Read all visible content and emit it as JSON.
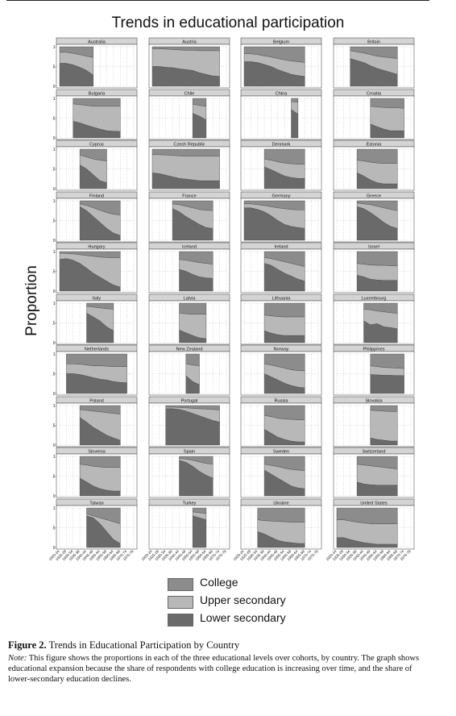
{
  "chart_data": {
    "type": "area",
    "title": "Trends in educational participation",
    "ylabel": "Proportion",
    "ylim": [
      0,
      1
    ],
    "yticks": [
      "0",
      ".5",
      "1"
    ],
    "x_tick_labels": [
      "1920-24",
      "1925-29",
      "1930-34",
      "1935-39",
      "1940-44",
      "1945-49",
      "1950-54",
      "1955-59",
      "1960-64",
      "1965-69",
      "1970-74",
      "1975-79"
    ],
    "layers": [
      "Lower secondary",
      "Upper secondary",
      "College"
    ],
    "legend": [
      {
        "label": "College",
        "color": "#8c8c8c"
      },
      {
        "label": "Upper secondary",
        "color": "#b8b8b8"
      },
      {
        "label": "Lower secondary",
        "color": "#6a6a6a"
      }
    ],
    "colors": {
      "college": "#8c8c8c",
      "upper": "#b8b8b8",
      "lower": "#6a6a6a"
    },
    "panels": [
      {
        "country": "Australia",
        "start": 0,
        "end": 6,
        "lower": [
          0.58,
          0.58,
          0.54,
          0.48,
          0.4,
          0.28
        ],
        "college": [
          0.14,
          0.14,
          0.17,
          0.2,
          0.24,
          0.27
        ]
      },
      {
        "country": "Austria",
        "start": 0,
        "end": 11,
        "lower": [
          0.5,
          0.5,
          0.48,
          0.47,
          0.44,
          0.42,
          0.4,
          0.34,
          0.3,
          0.26,
          0.25
        ],
        "college": [
          0.05,
          0.05,
          0.06,
          0.07,
          0.08,
          0.09,
          0.09,
          0.1,
          0.1,
          0.1,
          0.1
        ]
      },
      {
        "country": "Belgium",
        "start": 0,
        "end": 10,
        "lower": [
          0.62,
          0.62,
          0.6,
          0.55,
          0.5,
          0.42,
          0.36,
          0.3,
          0.27,
          0.25
        ],
        "college": [
          0.18,
          0.18,
          0.2,
          0.23,
          0.26,
          0.3,
          0.33,
          0.36,
          0.38,
          0.4
        ]
      },
      {
        "country": "Britain",
        "start": 2,
        "end": 10,
        "lower": [
          0.7,
          0.65,
          0.6,
          0.52,
          0.45,
          0.4,
          0.35,
          0.3
        ],
        "college": [
          0.1,
          0.13,
          0.16,
          0.2,
          0.24,
          0.26,
          0.28,
          0.3
        ]
      },
      {
        "country": "Bulgaria",
        "start": 2,
        "end": 10,
        "lower": [
          0.42,
          0.38,
          0.32,
          0.27,
          0.22,
          0.18,
          0.17,
          0.16
        ],
        "college": [
          0.14,
          0.16,
          0.18,
          0.2,
          0.2,
          0.2,
          0.2,
          0.2
        ]
      },
      {
        "country": "Chile",
        "start": 6,
        "end": 9,
        "lower": [
          0.62,
          0.55,
          0.45
        ],
        "college": [
          0.15,
          0.18,
          0.2
        ]
      },
      {
        "country": "China",
        "start": 7,
        "end": 9,
        "lower": [
          0.72,
          0.6
        ],
        "college": [
          0.08,
          0.1
        ]
      },
      {
        "country": "Croatia",
        "start": 5,
        "end": 11,
        "lower": [
          0.35,
          0.28,
          0.22,
          0.18,
          0.18,
          0.18
        ],
        "college": [
          0.2,
          0.22,
          0.23,
          0.24,
          0.24,
          0.25
        ]
      },
      {
        "country": "Cyprus",
        "start": 3,
        "end": 8,
        "lower": [
          0.6,
          0.5,
          0.35,
          0.2,
          0.15
        ],
        "college": [
          0.15,
          0.2,
          0.25,
          0.28,
          0.3
        ]
      },
      {
        "country": "Czech Republic",
        "start": 0,
        "end": 11,
        "lower": [
          0.4,
          0.38,
          0.34,
          0.3,
          0.26,
          0.24,
          0.22,
          0.2,
          0.2,
          0.2,
          0.2
        ],
        "college": [
          0.14,
          0.14,
          0.15,
          0.16,
          0.17,
          0.18,
          0.18,
          0.18,
          0.18,
          0.18,
          0.18
        ]
      },
      {
        "country": "Denmark",
        "start": 3,
        "end": 10,
        "lower": [
          0.55,
          0.48,
          0.4,
          0.32,
          0.28,
          0.26,
          0.26
        ],
        "college": [
          0.25,
          0.28,
          0.32,
          0.35,
          0.37,
          0.38,
          0.38
        ]
      },
      {
        "country": "Estonia",
        "start": 3,
        "end": 10,
        "lower": [
          0.4,
          0.32,
          0.22,
          0.15,
          0.12,
          0.12,
          0.12
        ],
        "college": [
          0.28,
          0.3,
          0.33,
          0.35,
          0.36,
          0.36,
          0.36
        ]
      },
      {
        "country": "Finland",
        "start": 3,
        "end": 10,
        "lower": [
          0.85,
          0.75,
          0.6,
          0.45,
          0.3,
          0.18,
          0.12
        ],
        "college": [
          0.08,
          0.12,
          0.18,
          0.24,
          0.3,
          0.34,
          0.36
        ]
      },
      {
        "country": "France",
        "start": 3,
        "end": 10,
        "lower": [
          0.8,
          0.72,
          0.6,
          0.5,
          0.4,
          0.32,
          0.3
        ],
        "college": [
          0.08,
          0.1,
          0.14,
          0.18,
          0.22,
          0.24,
          0.25
        ]
      },
      {
        "country": "Germany",
        "start": 0,
        "end": 10,
        "lower": [
          0.82,
          0.82,
          0.78,
          0.72,
          0.62,
          0.5,
          0.4,
          0.35,
          0.32,
          0.3
        ],
        "college": [
          0.08,
          0.08,
          0.1,
          0.12,
          0.15,
          0.18,
          0.2,
          0.22,
          0.23,
          0.23
        ]
      },
      {
        "country": "Greece",
        "start": 3,
        "end": 10,
        "lower": [
          0.85,
          0.8,
          0.7,
          0.58,
          0.45,
          0.35,
          0.3
        ],
        "college": [
          0.06,
          0.08,
          0.1,
          0.14,
          0.18,
          0.22,
          0.25
        ]
      },
      {
        "country": "Hungary",
        "start": 0,
        "end": 10,
        "lower": [
          0.8,
          0.82,
          0.78,
          0.7,
          0.58,
          0.45,
          0.35,
          0.25,
          0.15,
          0.1
        ],
        "college": [
          0.04,
          0.05,
          0.06,
          0.08,
          0.1,
          0.12,
          0.14,
          0.15,
          0.16,
          0.16
        ]
      },
      {
        "country": "Iceland",
        "start": 4,
        "end": 10,
        "lower": [
          0.55,
          0.5,
          0.42,
          0.36,
          0.33,
          0.32
        ],
        "college": [
          0.2,
          0.22,
          0.25,
          0.28,
          0.3,
          0.32
        ]
      },
      {
        "country": "Ireland",
        "start": 3,
        "end": 10,
        "lower": [
          0.7,
          0.65,
          0.55,
          0.45,
          0.38,
          0.3,
          0.25
        ],
        "college": [
          0.15,
          0.18,
          0.22,
          0.26,
          0.3,
          0.34,
          0.38
        ]
      },
      {
        "country": "Israel",
        "start": 3,
        "end": 10,
        "lower": [
          0.4,
          0.36,
          0.3,
          0.28,
          0.27,
          0.27,
          0.27
        ],
        "college": [
          0.3,
          0.32,
          0.34,
          0.35,
          0.35,
          0.36,
          0.36
        ]
      },
      {
        "country": "Italy",
        "start": 4,
        "end": 9,
        "lower": [
          0.75,
          0.65,
          0.55,
          0.4,
          0.3
        ],
        "college": [
          0.08,
          0.1,
          0.12,
          0.14,
          0.15
        ]
      },
      {
        "country": "Latvia",
        "start": 4,
        "end": 9,
        "lower": [
          0.32,
          0.25,
          0.18,
          0.12,
          0.1
        ],
        "college": [
          0.25,
          0.27,
          0.28,
          0.28,
          0.28
        ]
      },
      {
        "country": "Lithuania",
        "start": 3,
        "end": 10,
        "lower": [
          0.3,
          0.24,
          0.2,
          0.18,
          0.18,
          0.18,
          0.18
        ],
        "college": [
          0.3,
          0.32,
          0.34,
          0.35,
          0.35,
          0.35,
          0.35
        ]
      },
      {
        "country": "Luxembourg",
        "start": 4,
        "end": 10,
        "lower": [
          0.55,
          0.45,
          0.48,
          0.4,
          0.38,
          0.35
        ],
        "college": [
          0.15,
          0.17,
          0.2,
          0.22,
          0.24,
          0.26
        ]
      },
      {
        "country": "Netherlands",
        "start": 1,
        "end": 11,
        "lower": [
          0.5,
          0.5,
          0.48,
          0.44,
          0.4,
          0.36,
          0.34,
          0.3,
          0.28,
          0.27
        ],
        "college": [
          0.25,
          0.25,
          0.26,
          0.28,
          0.3,
          0.3,
          0.31,
          0.32,
          0.32,
          0.32
        ]
      },
      {
        "country": "New Zealand",
        "start": 5,
        "end": 8,
        "lower": [
          0.45,
          0.3,
          0.22
        ],
        "college": [
          0.25,
          0.28,
          0.3
        ]
      },
      {
        "country": "Norway",
        "start": 3,
        "end": 10,
        "lower": [
          0.5,
          0.42,
          0.34,
          0.26,
          0.2,
          0.16,
          0.14
        ],
        "college": [
          0.25,
          0.28,
          0.32,
          0.36,
          0.4,
          0.42,
          0.43
        ]
      },
      {
        "country": "Philippines",
        "start": 5,
        "end": 11,
        "lower": [
          0.48,
          0.47,
          0.46,
          0.46,
          0.45,
          0.45
        ],
        "college": [
          0.3,
          0.32,
          0.34,
          0.35,
          0.36,
          0.37
        ]
      },
      {
        "country": "Poland",
        "start": 3,
        "end": 10,
        "lower": [
          0.7,
          0.58,
          0.45,
          0.35,
          0.25,
          0.18,
          0.12
        ],
        "college": [
          0.1,
          0.12,
          0.14,
          0.16,
          0.18,
          0.2,
          0.22
        ]
      },
      {
        "country": "Portugal",
        "start": 2,
        "end": 11,
        "lower": [
          0.92,
          0.92,
          0.9,
          0.86,
          0.8,
          0.74,
          0.68,
          0.62,
          0.58
        ],
        "college": [
          0.04,
          0.04,
          0.05,
          0.06,
          0.07,
          0.08,
          0.09,
          0.1,
          0.11
        ]
      },
      {
        "country": "Russia",
        "start": 3,
        "end": 10,
        "lower": [
          0.4,
          0.3,
          0.2,
          0.14,
          0.1,
          0.08,
          0.08
        ],
        "college": [
          0.25,
          0.28,
          0.32,
          0.34,
          0.35,
          0.36,
          0.36
        ]
      },
      {
        "country": "Slovakia",
        "start": 5,
        "end": 10,
        "lower": [
          0.18,
          0.14,
          0.12,
          0.1,
          0.1
        ],
        "college": [
          0.12,
          0.13,
          0.14,
          0.15,
          0.15
        ]
      },
      {
        "country": "Slovenia",
        "start": 3,
        "end": 10,
        "lower": [
          0.45,
          0.35,
          0.25,
          0.18,
          0.14,
          0.12,
          0.12
        ],
        "college": [
          0.2,
          0.22,
          0.25,
          0.27,
          0.28,
          0.28,
          0.28
        ]
      },
      {
        "country": "Spain",
        "start": 4,
        "end": 10,
        "lower": [
          0.9,
          0.85,
          0.75,
          0.62,
          0.52,
          0.45
        ],
        "college": [
          0.05,
          0.07,
          0.1,
          0.14,
          0.18,
          0.2
        ]
      },
      {
        "country": "Sweden",
        "start": 3,
        "end": 10,
        "lower": [
          0.65,
          0.55,
          0.45,
          0.35,
          0.25,
          0.2,
          0.18
        ],
        "college": [
          0.2,
          0.23,
          0.26,
          0.3,
          0.33,
          0.35,
          0.36
        ]
      },
      {
        "country": "Switzerland",
        "start": 3,
        "end": 10,
        "lower": [
          0.35,
          0.3,
          0.28,
          0.27,
          0.27,
          0.27,
          0.27
        ],
        "college": [
          0.2,
          0.22,
          0.24,
          0.26,
          0.28,
          0.3,
          0.32
        ]
      },
      {
        "country": "Taiwan",
        "start": 4,
        "end": 10,
        "lower": [
          0.8,
          0.75,
          0.6,
          0.4,
          0.2,
          0.1
        ],
        "college": [
          0.15,
          0.2,
          0.25,
          0.3,
          0.35,
          0.4
        ]
      },
      {
        "country": "Turkey",
        "start": 6,
        "end": 9,
        "lower": [
          0.8,
          0.75,
          0.7
        ],
        "college": [
          0.1,
          0.12,
          0.14
        ]
      },
      {
        "country": "Ukraine",
        "start": 2,
        "end": 10,
        "lower": [
          0.4,
          0.34,
          0.26,
          0.18,
          0.14,
          0.12,
          0.1,
          0.1
        ],
        "college": [
          0.3,
          0.32,
          0.33,
          0.34,
          0.35,
          0.36,
          0.36,
          0.36
        ]
      },
      {
        "country": "United States",
        "start": 0,
        "end": 10,
        "lower": [
          0.25,
          0.25,
          0.2,
          0.16,
          0.12,
          0.1,
          0.08,
          0.08,
          0.08,
          0.08
        ],
        "college": [
          0.3,
          0.3,
          0.33,
          0.36,
          0.38,
          0.4,
          0.4,
          0.4,
          0.4,
          0.4
        ]
      }
    ]
  },
  "figure": {
    "number_label": "Figure 2.",
    "caption_title": "Trends in Educational Participation by Country",
    "note_label": "Note:",
    "note_text": "This figure shows the proportions in each of the three educational levels over cohorts, by country. The graph shows educational expansion because the share of respondents with college education is increasing over time, and the share of lower-secondary education declines."
  }
}
